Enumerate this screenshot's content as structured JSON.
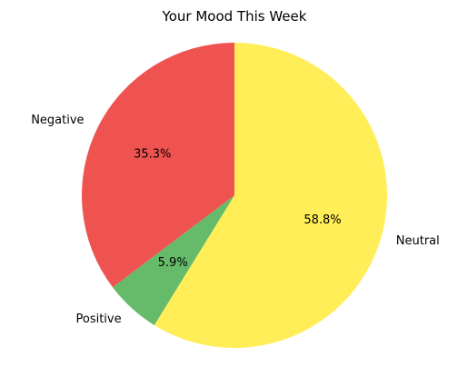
{
  "chart_data": {
    "type": "pie",
    "title": "Your Mood This Week",
    "slices": [
      {
        "label": "Neutral",
        "value": 58.8,
        "pct_label": "58.8%",
        "color": "#FFEE58"
      },
      {
        "label": "Positive",
        "value": 5.9,
        "pct_label": "5.9%",
        "color": "#66BB6A"
      },
      {
        "label": "Negative",
        "value": 35.3,
        "pct_label": "35.3%",
        "color": "#EF5350"
      }
    ],
    "start_angle_deg": 90,
    "direction": "clockwise",
    "legend": "none"
  }
}
